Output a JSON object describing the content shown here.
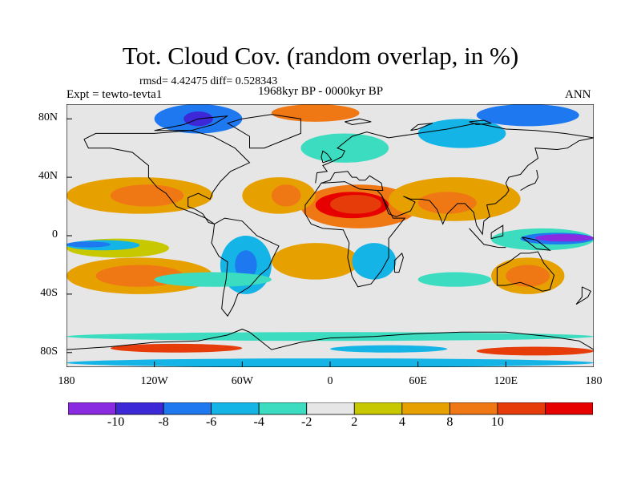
{
  "title": "Tot. Cloud Cov. (random overlap, in %)",
  "stats": "rmsd= 4.42475  diff= 0.528343",
  "experiment": "Expt = tewto-tevta1",
  "period": "1968kyr BP - 0000kyr BP",
  "season": "ANN",
  "y_axis_ticks": [
    {
      "label": "80N",
      "lat": 80
    },
    {
      "label": "40N",
      "lat": 40
    },
    {
      "label": "0",
      "lat": 0
    },
    {
      "label": "40S",
      "lat": -40
    },
    {
      "label": "80S",
      "lat": -80
    }
  ],
  "x_axis_ticks": [
    {
      "label": "180",
      "lon": -180
    },
    {
      "label": "120W",
      "lon": -120
    },
    {
      "label": "60W",
      "lon": -60
    },
    {
      "label": "0",
      "lon": 0
    },
    {
      "label": "60E",
      "lon": 60
    },
    {
      "label": "120E",
      "lon": 120
    },
    {
      "label": "180",
      "lon": 180
    }
  ],
  "colorbar": {
    "colors": [
      "#8a2be2",
      "#3c28d6",
      "#1e78f0",
      "#14b4e6",
      "#3cdcc0",
      "#e6e6e6",
      "#c8c800",
      "#e6a000",
      "#f07814",
      "#e63c0a",
      "#e60000"
    ],
    "labels": [
      {
        "text": "-10",
        "boundary": 1
      },
      {
        "text": "-8",
        "boundary": 2
      },
      {
        "text": "-6",
        "boundary": 3
      },
      {
        "text": "-4",
        "boundary": 4
      },
      {
        "text": "-2",
        "boundary": 5
      },
      {
        "text": "2",
        "boundary": 6
      },
      {
        "text": "4",
        "boundary": 7
      },
      {
        "text": "8",
        "boundary": 8
      },
      {
        "text": "10",
        "boundary": 9
      }
    ]
  },
  "map": {
    "projection": "cylindrical-equidistant",
    "lon_range": [
      -180,
      180
    ],
    "lat_range": [
      -90,
      90
    ],
    "background_class_color": "#e6e6e6",
    "coastline_color": "#000000"
  }
}
